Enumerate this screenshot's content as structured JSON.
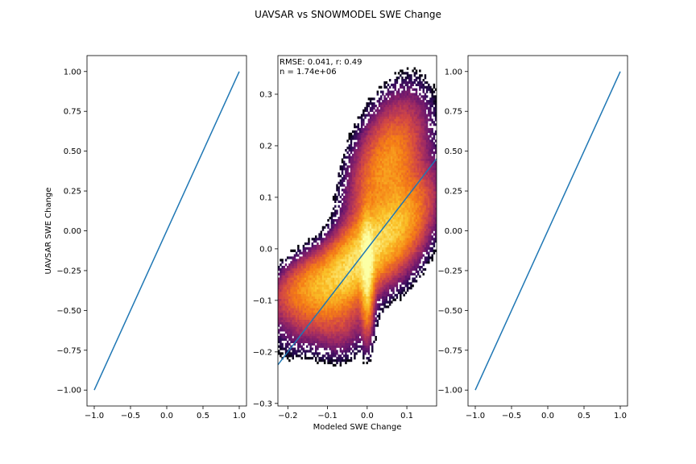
{
  "figure": {
    "title": "UAVSAR vs SNOWMODEL SWE Change"
  },
  "chart_data": [
    {
      "type": "line",
      "panel": "left",
      "xlabel": "",
      "ylabel": "UAVSAR SWE Change",
      "x": [
        -1.0,
        1.0
      ],
      "y": [
        -1.0,
        1.0
      ],
      "xlim": [
        -1.1,
        1.1
      ],
      "ylim": [
        -1.1,
        1.1
      ],
      "xticks": [
        -1.0,
        -0.5,
        0.0,
        0.5,
        1.0
      ],
      "xtick_labels": [
        "−1.0",
        "−0.5",
        "0.0",
        "0.5",
        "1.0"
      ],
      "yticks": [
        -1.0,
        -0.75,
        -0.5,
        -0.25,
        0.0,
        0.25,
        0.5,
        0.75,
        1.0
      ],
      "ytick_labels": [
        "−1.00",
        "−0.75",
        "−0.50",
        "−0.25",
        "0.00",
        "0.25",
        "0.50",
        "0.75",
        "1.00"
      ],
      "line_color": "#1f77b4"
    },
    {
      "type": "heatmap",
      "panel": "middle",
      "xlabel": "Modeled SWE Change",
      "ylabel": "",
      "xlim": [
        -0.225,
        0.175
      ],
      "ylim": [
        -0.305,
        0.375
      ],
      "xticks": [
        -0.2,
        -0.1,
        0.0,
        0.1
      ],
      "xtick_labels": [
        "−0.2",
        "−0.1",
        "0.0",
        "0.1"
      ],
      "yticks": [
        -0.3,
        -0.2,
        -0.1,
        0.0,
        0.1,
        0.2,
        0.3
      ],
      "ytick_labels": [
        "−0.3",
        "−0.2",
        "−0.1",
        "0.0",
        "0.1",
        "0.2",
        "0.3"
      ],
      "annotation_line1": "RMSE: 0.041, r: 0.49",
      "annotation_line2": "n = 1.74e+06",
      "rmse": 0.041,
      "r": 0.49,
      "n": 1740000,
      "colormap": "inferno",
      "one_to_one_line": {
        "x": [
          -0.225,
          0.175
        ],
        "y": [
          -0.225,
          0.175
        ],
        "color": "#1f77b4"
      }
    },
    {
      "type": "line",
      "panel": "right",
      "xlabel": "",
      "ylabel": "",
      "x": [
        -1.0,
        1.0
      ],
      "y": [
        -1.0,
        1.0
      ],
      "xlim": [
        -1.1,
        1.1
      ],
      "ylim": [
        -1.1,
        1.1
      ],
      "xticks": [
        -1.0,
        -0.5,
        0.0,
        0.5,
        1.0
      ],
      "xtick_labels": [
        "−1.0",
        "−0.5",
        "0.0",
        "0.5",
        "1.0"
      ],
      "yticks": [
        -1.0,
        -0.75,
        -0.5,
        -0.25,
        0.0,
        0.25,
        0.5,
        0.75,
        1.0
      ],
      "ytick_labels": [
        "−1.00",
        "−0.75",
        "−0.50",
        "−0.25",
        "0.00",
        "0.25",
        "0.50",
        "0.75",
        "1.00"
      ],
      "line_color": "#1f77b4"
    }
  ]
}
